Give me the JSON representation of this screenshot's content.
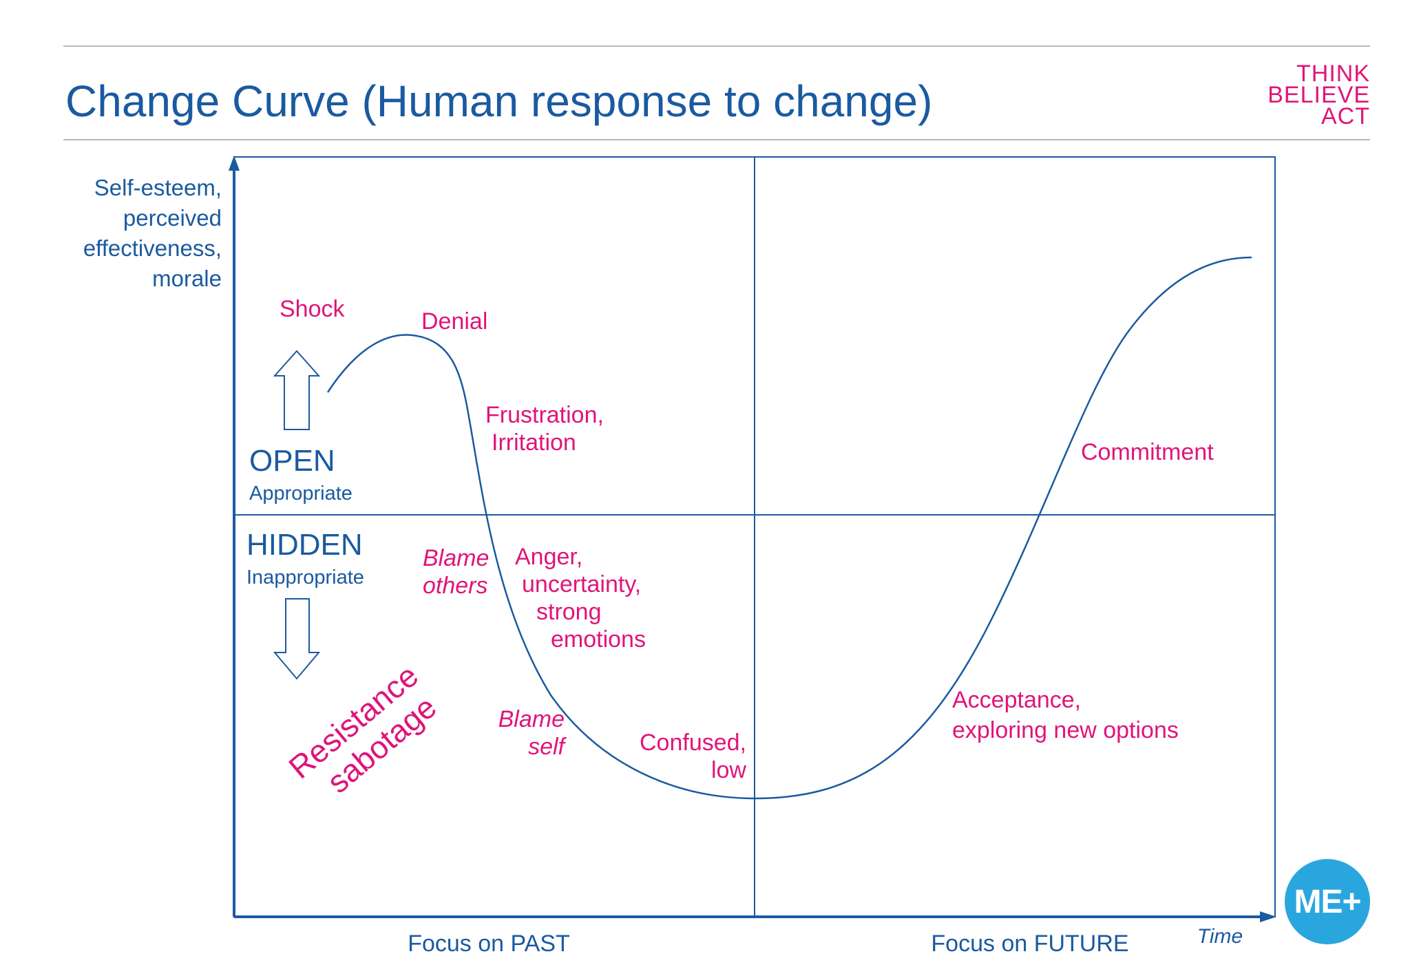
{
  "title": "Change Curve (Human response to change)",
  "logo": {
    "line1": "THINK",
    "line2": "BELIEVE",
    "line3": "ACT"
  },
  "badge": "ME+",
  "y_axis_label": [
    "Self-esteem,",
    "perceived",
    "effectiveness,",
    "morale"
  ],
  "x_axis": {
    "past": "Focus on PAST",
    "future": "Focus on FUTURE",
    "time": "Time"
  },
  "zones": {
    "open": {
      "title": "OPEN",
      "subtitle": "Appropriate"
    },
    "hidden": {
      "title": "HIDDEN",
      "subtitle": "Inappropriate"
    }
  },
  "stages": {
    "shock": "Shock",
    "denial": "Denial",
    "frustration": [
      "Frustration,",
      "Irritation"
    ],
    "blame_others": [
      "Blame",
      "others"
    ],
    "anger": [
      "Anger,",
      "uncertainty,",
      "strong",
      "emotions"
    ],
    "blame_self": [
      "Blame",
      "self"
    ],
    "confused": [
      "Confused,",
      "low"
    ],
    "acceptance": [
      "Acceptance,",
      "exploring new options"
    ],
    "commitment": "Commitment"
  },
  "resistance": [
    "Resistance",
    "sabotage"
  ],
  "colors": {
    "blue": "#1a5aa0",
    "magenta": "#e0147a",
    "badge": "#2aa6df"
  }
}
